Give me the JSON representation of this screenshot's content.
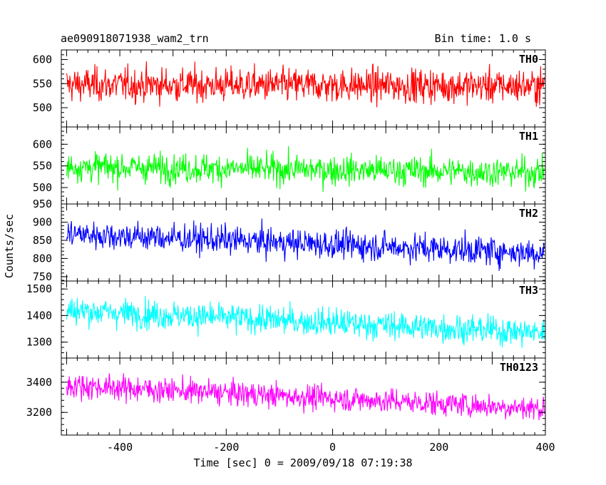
{
  "chart_data": {
    "type": "line",
    "title_left": "ae090918071938_wam2_trn",
    "title_right": "Bin time: 1.0 s",
    "xlabel": "Time [sec] 0 = 2009/09/18 07:19:38",
    "ylabel": "Counts/sec",
    "xlim": [
      -510,
      400
    ],
    "x_ticks": [
      -400,
      -200,
      0,
      200,
      400
    ],
    "x_step": 1.0,
    "panels": [
      {
        "name": "TH0",
        "color": "#ff0000",
        "ylim": [
          460,
          620
        ],
        "yticks": [
          500,
          550,
          600
        ],
        "mean_start": 548,
        "mean_end": 545,
        "noise_sd": 25
      },
      {
        "name": "TH1",
        "color": "#00ff00",
        "ylim": [
          462,
          640
        ],
        "yticks": [
          500,
          550,
          600
        ],
        "mean_start": 548,
        "mean_end": 535,
        "noise_sd": 24
      },
      {
        "name": "TH2",
        "color": "#0000ff",
        "ylim": [
          738,
          950
        ],
        "yticks": [
          750,
          800,
          850,
          900,
          950
        ],
        "mean_start": 868,
        "mean_end": 815,
        "noise_sd": 28
      },
      {
        "name": "TH3",
        "color": "#00ffff",
        "ylim": [
          1240,
          1530
        ],
        "yticks": [
          1300,
          1400,
          1500
        ],
        "mean_start": 1420,
        "mean_end": 1335,
        "noise_sd": 38
      },
      {
        "name": "TH0123",
        "color": "#ff00ff",
        "ylim": [
          3050,
          3560
        ],
        "yticks": [
          3200,
          3400
        ],
        "mean_start": 3380,
        "mean_end": 3225,
        "noise_sd": 58
      }
    ]
  }
}
